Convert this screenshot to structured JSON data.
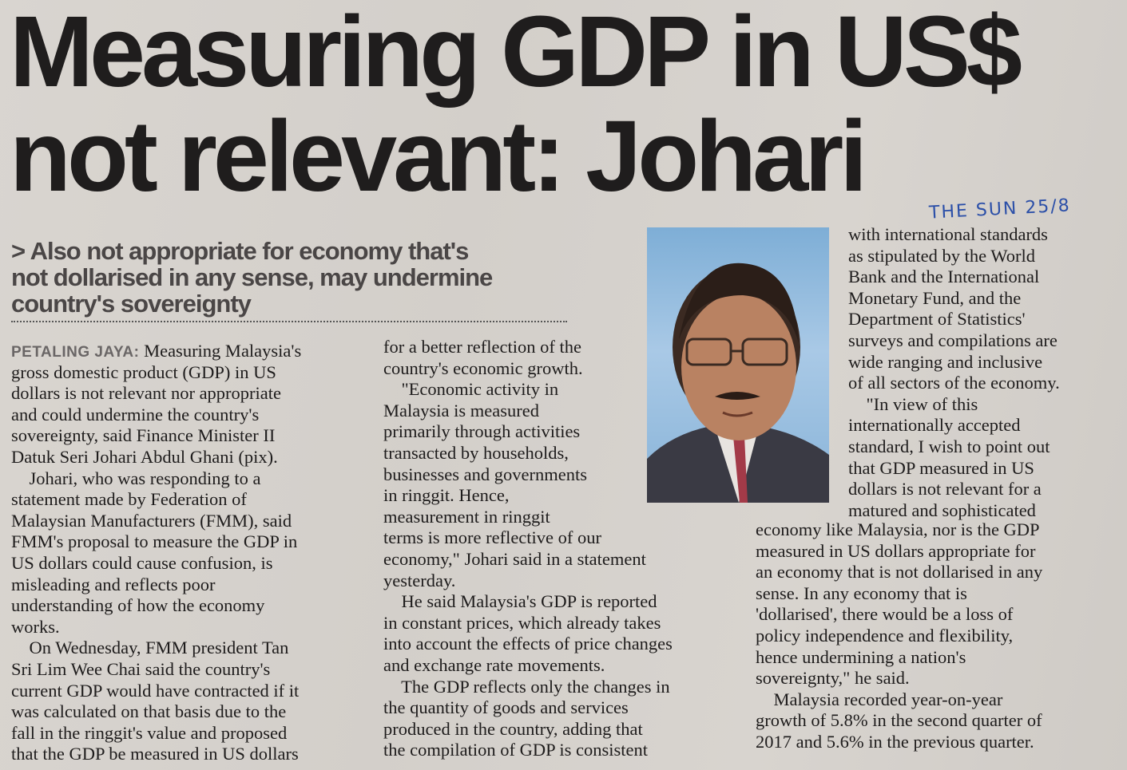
{
  "headline": {
    "line1": "Measuring GDP in US$",
    "line2": "not relevant: Johari"
  },
  "subheadline": [
    "> Also not appropriate for economy that's",
    "not dollarised in any sense, may undermine",
    "country's sovereignty"
  ],
  "handwritten_note": "THE SUN 25/8",
  "article": {
    "dateline": "PETALING JAYA:",
    "col1": [
      " Measuring Malaysia's",
      "gross domestic product (GDP) in US",
      "dollars is not relevant nor appropriate",
      "and could undermine the country's",
      "sovereignty, said Finance Minister II",
      "Datuk Seri Johari Abdul Ghani (pix).",
      "    Johari, who was responding to a",
      "statement made by Federation of",
      "Malaysian Manufacturers (FMM), said",
      "FMM's proposal to measure the GDP in",
      "US dollars could cause confusion, is",
      "misleading and reflects poor",
      "understanding of how the economy",
      "works.",
      "    On Wednesday, FMM president Tan",
      "Sri Lim Wee Chai said the country's",
      "current GDP would have contracted if it",
      "was calculated on that basis due to the",
      "fall in the ringgit's value and proposed",
      "that the GDP be measured in US dollars"
    ],
    "col2": [
      "for a better reflection of the",
      "country's economic growth.",
      "    \"Economic activity in",
      "Malaysia is measured",
      "primarily through activities",
      "transacted by households,",
      "businesses and governments",
      "in ringgit. Hence,",
      "measurement in ringgit",
      "terms is more reflective of our",
      "economy,\" Johari said in a statement",
      "yesterday.",
      "    He said Malaysia's GDP is reported",
      "in constant prices, which already takes",
      "into account the effects of price changes",
      "and exchange rate movements.",
      "    The GDP reflects only the changes in",
      "the quantity of goods and services",
      "produced in the country, adding that",
      "the compilation of GDP is consistent"
    ],
    "col3_upper": [
      "with international standards",
      "as stipulated by the World",
      "Bank and the International",
      "Monetary Fund, and the",
      "Department of Statistics'",
      "surveys and compilations are",
      "wide ranging and inclusive",
      "of all sectors of the economy.",
      "    \"In view of this",
      "internationally accepted",
      "standard, I wish to point out",
      "that GDP measured in US",
      "dollars is not relevant for a",
      "matured and sophisticated"
    ],
    "col3_lower": [
      "economy like Malaysia, nor is the GDP",
      "measured in US dollars appropriate for",
      "an economy that is not dollarised in any",
      "sense. In any economy that is",
      "'dollarised', there would be a loss of",
      "policy independence and flexibility,",
      "hence undermining a nation's",
      "sovereignty,\" he said.",
      "    Malaysia recorded year-on-year",
      "growth of 5.8% in the second quarter of",
      "2017 and 5.6% in the previous quarter."
    ]
  },
  "colors": {
    "paper": "#d6d2cd",
    "ink": "#1e1c1c",
    "handwriting": "#2b4fa8",
    "photo_background": "#8db6da"
  }
}
